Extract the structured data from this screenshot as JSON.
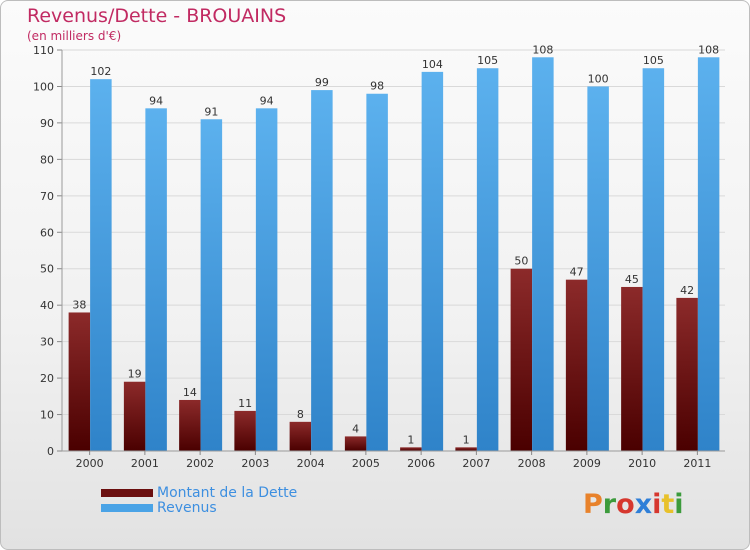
{
  "chart_data": {
    "type": "bar",
    "title": "Revenus/Dette - BROUAINS",
    "subtitle": "(en milliers d'€)",
    "categories": [
      "2000",
      "2001",
      "2002",
      "2003",
      "2004",
      "2005",
      "2006",
      "2007",
      "2008",
      "2009",
      "2010",
      "2011"
    ],
    "series": [
      {
        "name": "Montant de la Dette",
        "values": [
          38,
          19,
          14,
          11,
          8,
          4,
          1,
          1,
          50,
          47,
          45,
          42
        ],
        "color": "#7a1515"
      },
      {
        "name": "Revenus",
        "values": [
          102,
          94,
          91,
          94,
          99,
          98,
          104,
          105,
          108,
          100,
          105,
          108
        ],
        "color": "#4aa3e6"
      }
    ],
    "ylim": [
      0,
      110
    ],
    "yticks": [
      0,
      10,
      20,
      30,
      40,
      50,
      60,
      70,
      80,
      90,
      100,
      110
    ],
    "grid": true,
    "legend_position": "bottom-left"
  },
  "brand": {
    "text": "Proxiti",
    "letter_colors": [
      "#e8822b",
      "#3c9b3c",
      "#d6372e",
      "#2f7fd8",
      "#d6372e",
      "#e8c12b",
      "#3c9b3c"
    ]
  }
}
